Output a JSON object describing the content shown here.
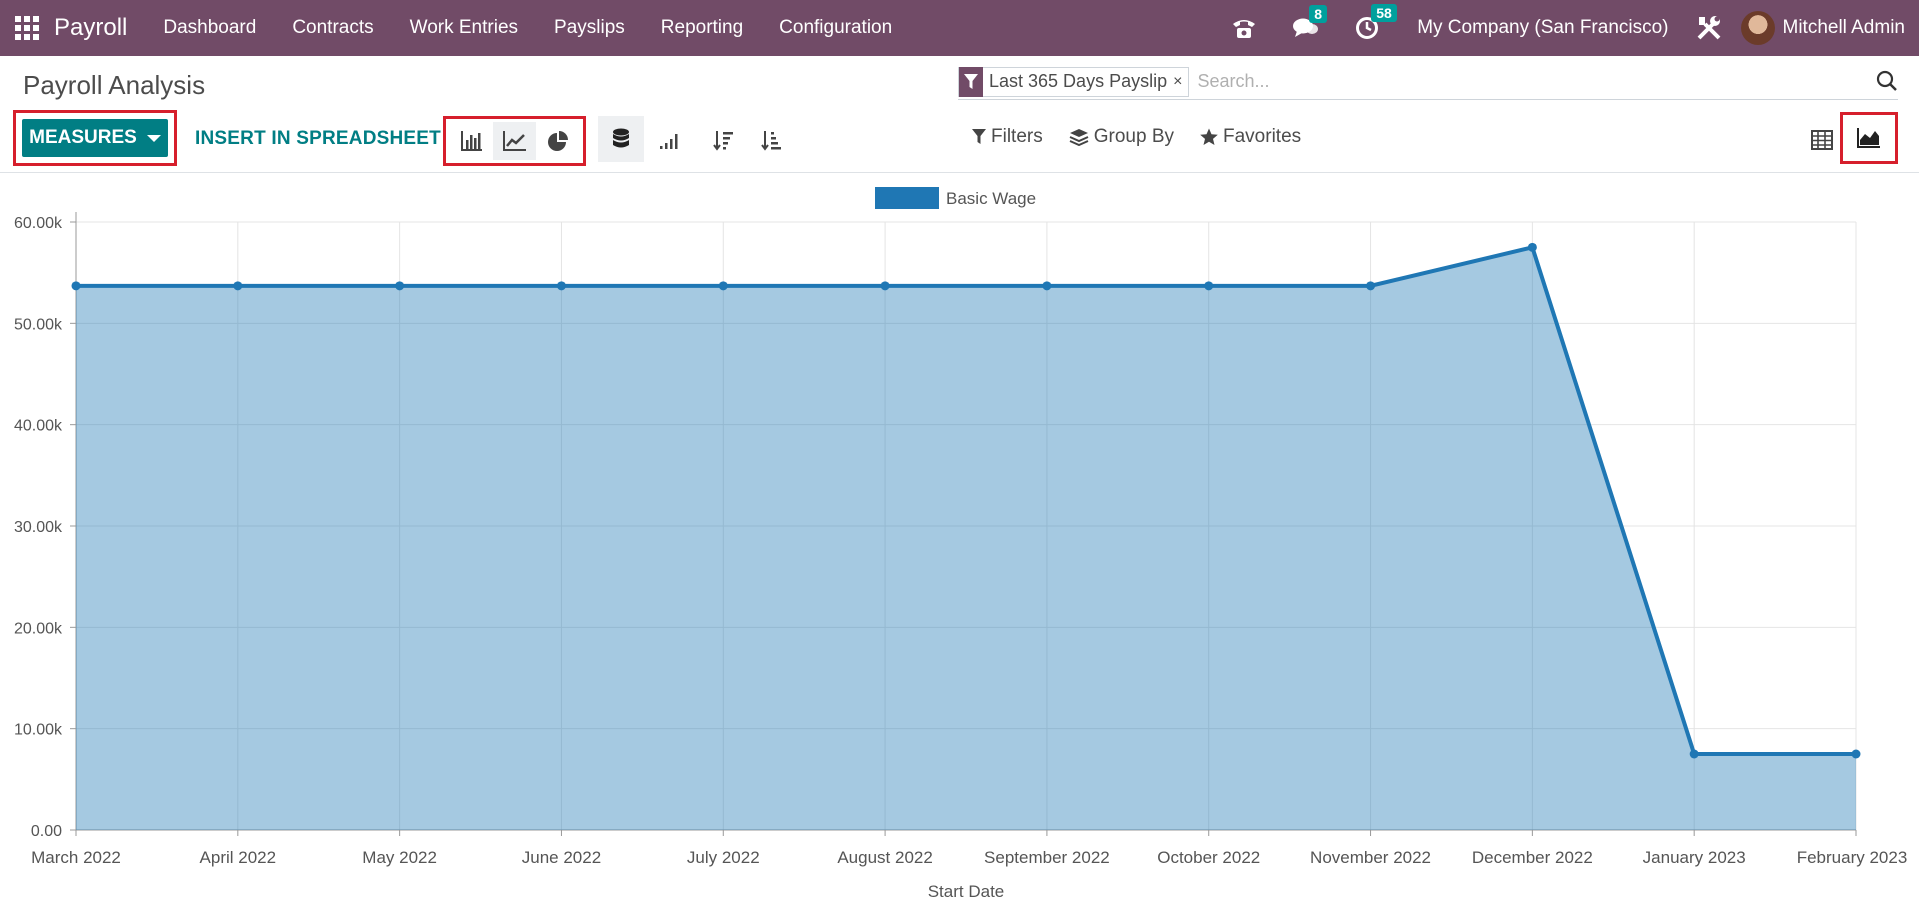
{
  "navbar": {
    "app_name": "Payroll",
    "menu": [
      "Dashboard",
      "Contracts",
      "Work Entries",
      "Payslips",
      "Reporting",
      "Configuration"
    ],
    "messages_count": "8",
    "activities_count": "58",
    "company": "My Company (San Francisco)",
    "user": "Mitchell Admin",
    "color": "#714b67"
  },
  "page": {
    "title": "Payroll Analysis"
  },
  "search": {
    "facet_value": "Last 365 Days Payslip",
    "facet_remove": "×",
    "placeholder": "Search..."
  },
  "toolbar": {
    "measures_label": "MEASURES",
    "insert_label": "INSERT IN SPREADSHEET",
    "accent_color": "#017e84"
  },
  "filters": {
    "filters_label": "Filters",
    "group_by_label": "Group By",
    "favorites_label": "Favorites"
  },
  "chart_data": {
    "type": "area",
    "categories": [
      "March 2022",
      "April 2022",
      "May 2022",
      "June 2022",
      "July 2022",
      "August 2022",
      "September 2022",
      "October 2022",
      "November 2022",
      "December 2022",
      "January 2023",
      "February 2023"
    ],
    "series": [
      {
        "name": "Basic Wage",
        "values": [
          53700,
          53700,
          53700,
          53700,
          53700,
          53700,
          53700,
          53700,
          53700,
          57500,
          7500,
          7500
        ],
        "color": "#1f77b4"
      }
    ],
    "xlabel": "Start Date",
    "ylabel": "",
    "ylim": [
      0,
      60000
    ],
    "yticks": [
      "0.00",
      "10.00k",
      "20.00k",
      "30.00k",
      "40.00k",
      "50.00k",
      "60.00k"
    ],
    "grid": true,
    "legend": "top-center"
  }
}
